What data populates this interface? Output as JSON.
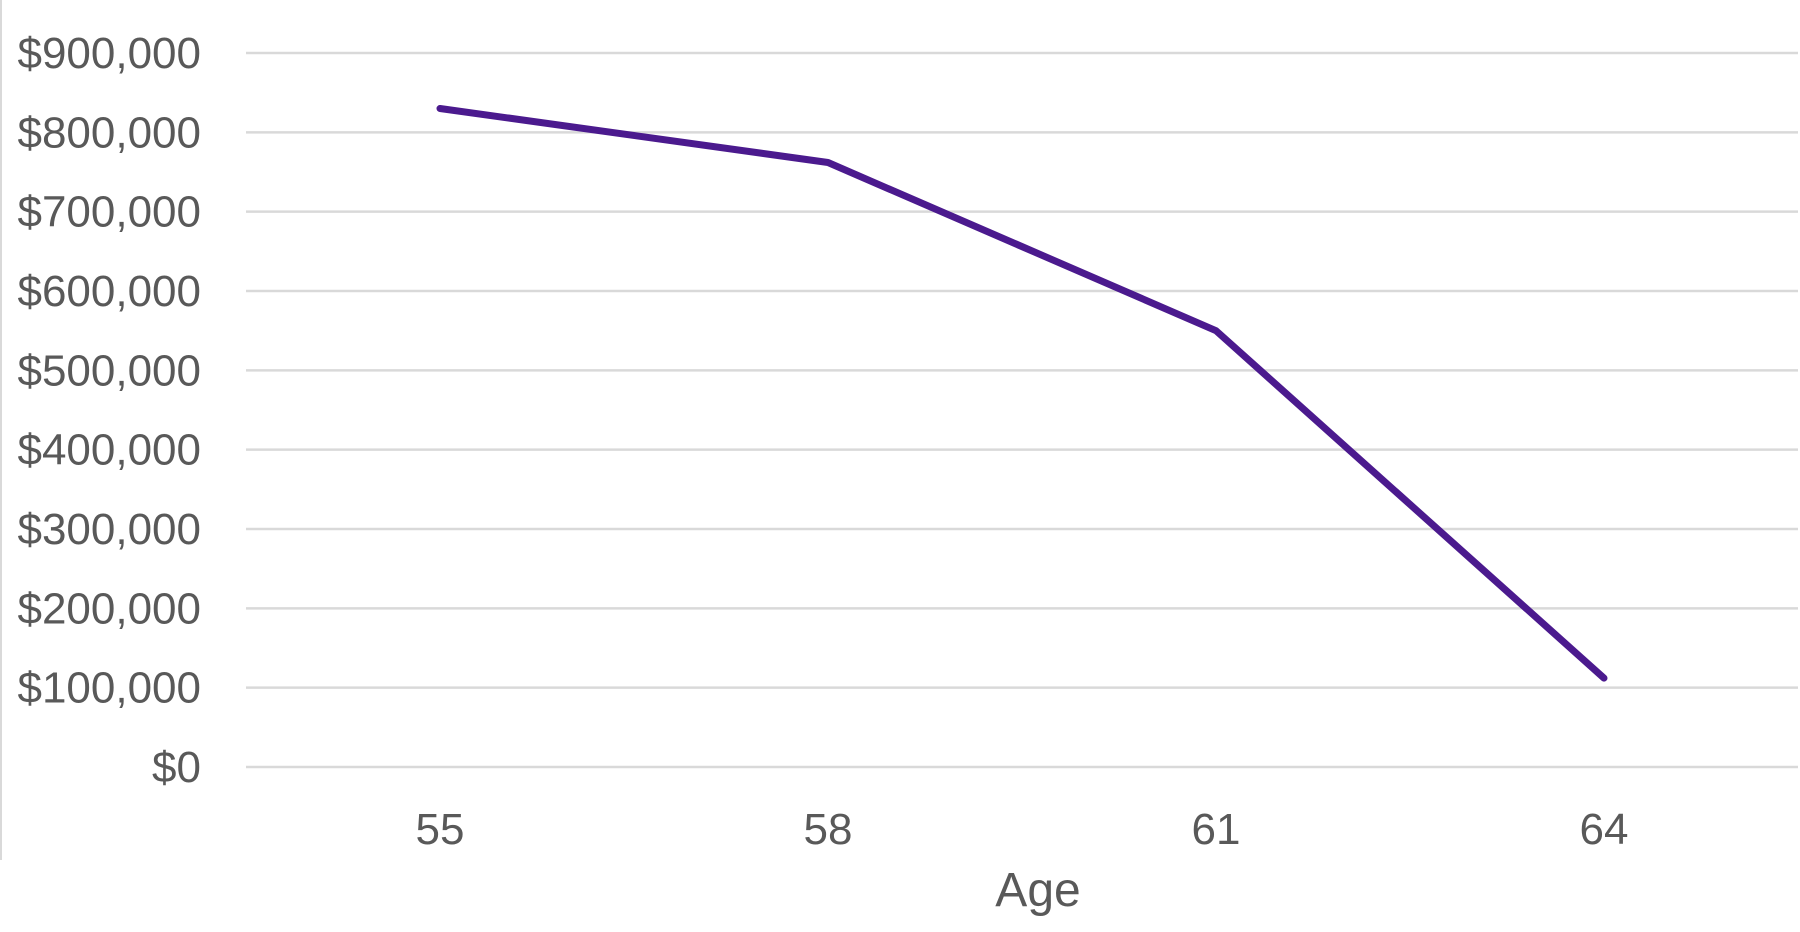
{
  "chart_data": {
    "type": "line",
    "x": [
      "55",
      "58",
      "61",
      "64"
    ],
    "series": [
      {
        "values": [
          830000,
          762000,
          550000,
          112000
        ]
      }
    ],
    "xlabel": "Age",
    "ylabel": "",
    "ylim": [
      0,
      900000
    ],
    "ytick_step": 100000,
    "ytick_labels": [
      "$0",
      "$100,000",
      "$200,000",
      "$300,000",
      "$400,000",
      "$500,000",
      "$600,000",
      "$700,000",
      "$800,000",
      "$900,000"
    ],
    "grid": true,
    "legend": "none",
    "colors": {
      "line": "#4B1A8E",
      "grid": "#D9D9D9",
      "text": "#595959"
    }
  }
}
